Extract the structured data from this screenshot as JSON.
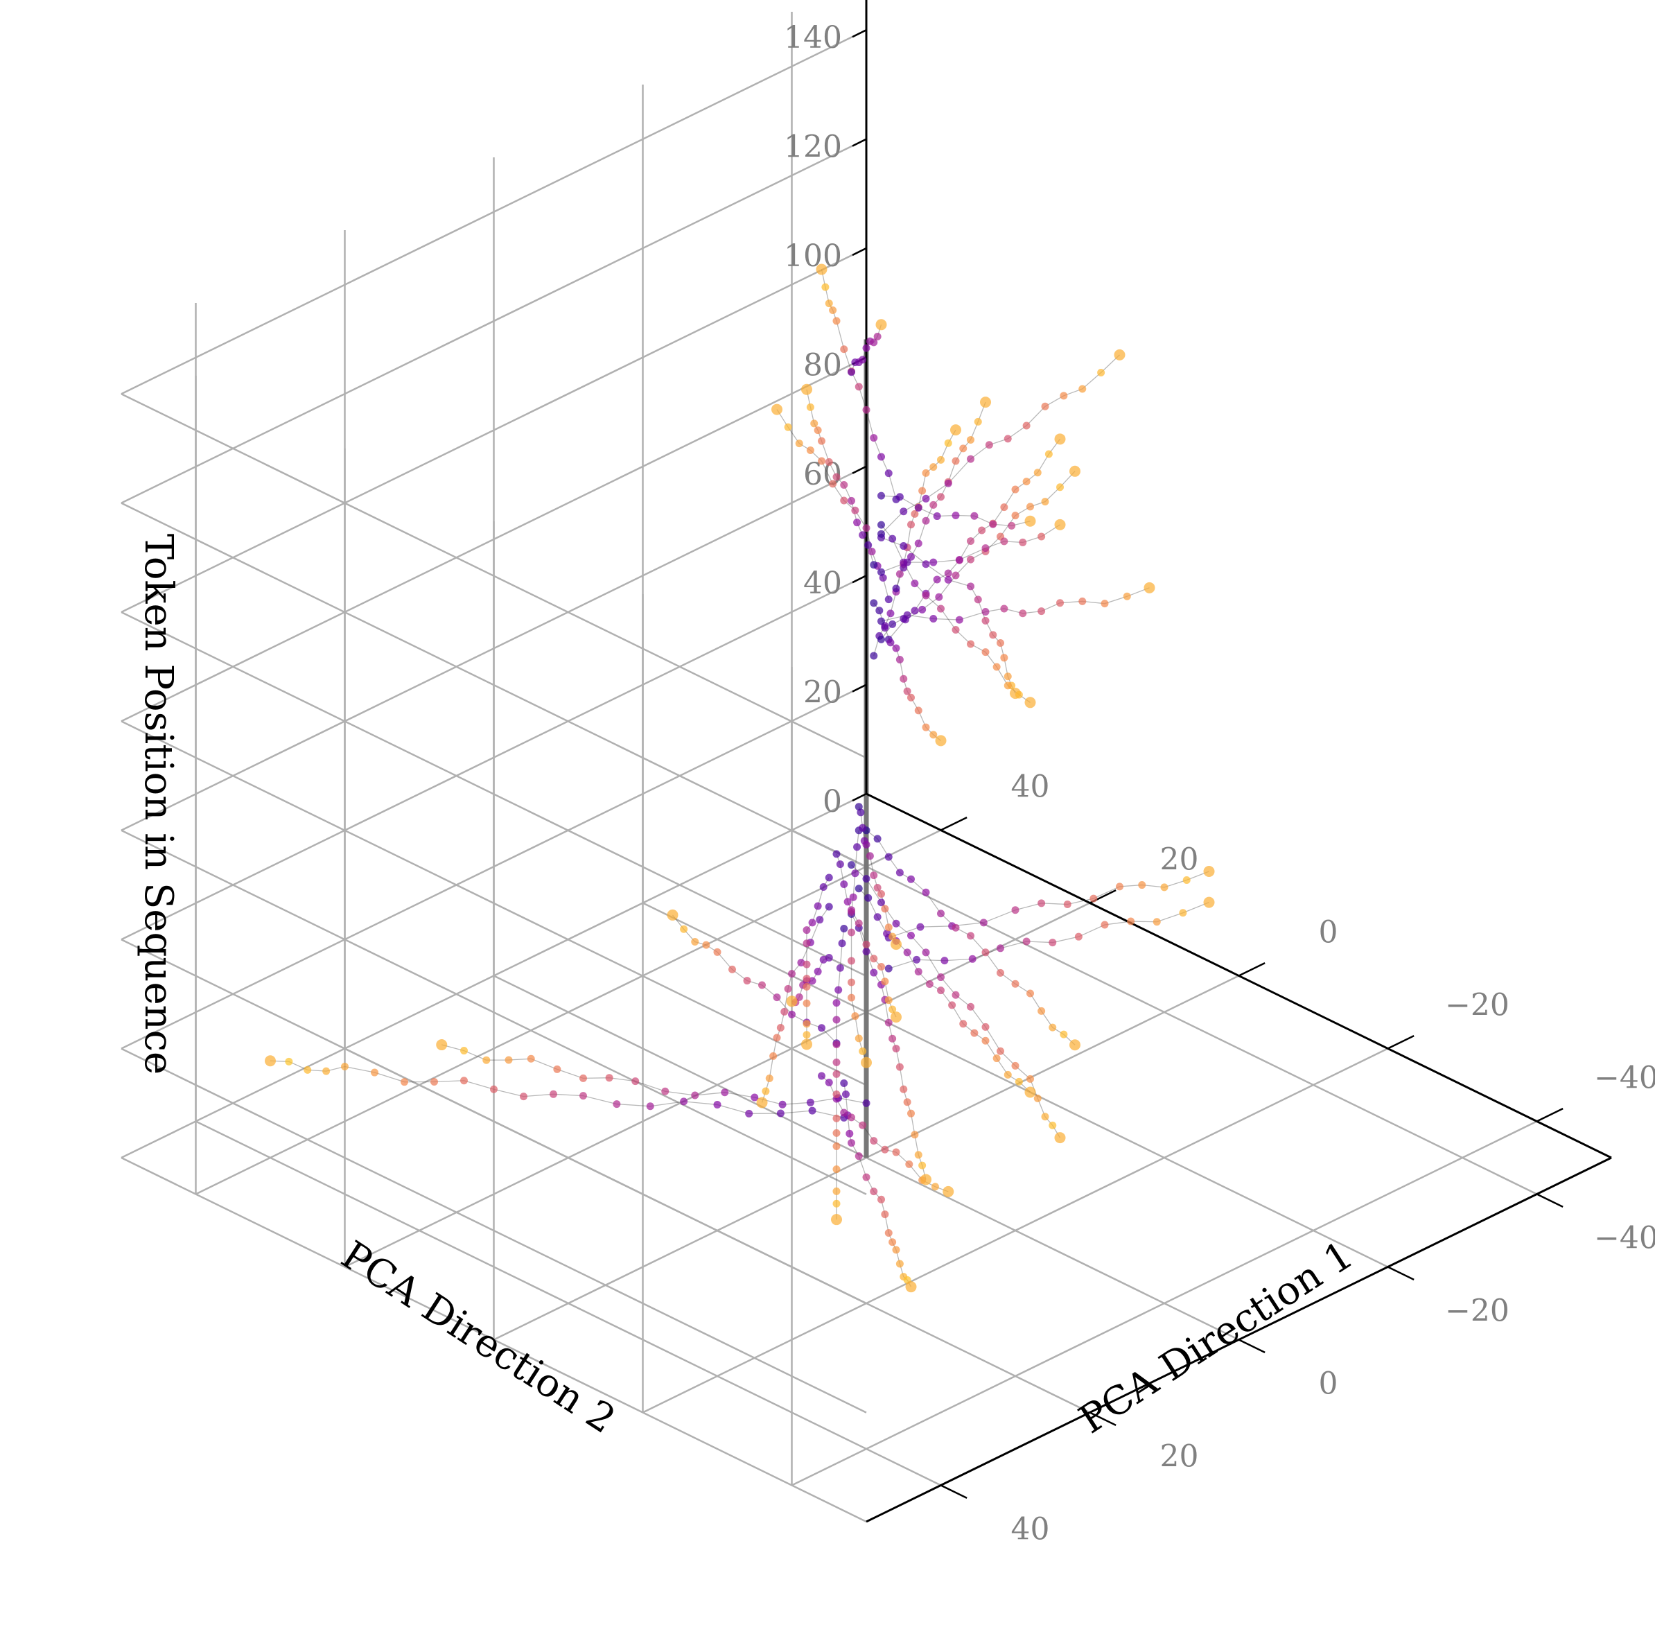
{
  "chart_data": {
    "type": "scatter",
    "projection": "3d",
    "title": "",
    "xlabel": "PCA Direction 1",
    "ylabel": "PCA Direction 2",
    "zlabel": "Token Position in Sequence",
    "xlim": [
      -50,
      50
    ],
    "ylim": [
      -50,
      50
    ],
    "zlim": [
      0,
      150
    ],
    "xticks": [
      "−40",
      "−20",
      "0",
      "20",
      "40"
    ],
    "yticks": [
      "−40",
      "−20",
      "0",
      "20",
      "40"
    ],
    "zticks": [
      "0",
      "20",
      "40",
      "60",
      "80",
      "100",
      "120",
      "140"
    ],
    "grid": true,
    "colormap": "plasma",
    "reference_line": {
      "x": 0,
      "y": 0,
      "z": [
        0,
        150
      ],
      "color": "#777777"
    },
    "description_series": "Trajectories of token representations; each trajectory is a sequence of points over token position, colored by plasma colormap (dark purple near center, orange/yellow at outer endpoints).",
    "trajectories": [
      {
        "z": 12,
        "points": [
          [
            -2,
            5
          ],
          [
            8,
            12
          ],
          [
            18,
            20
          ],
          [
            28,
            26
          ],
          [
            38,
            32
          ],
          [
            44,
            36
          ]
        ]
      },
      {
        "z": 14,
        "points": [
          [
            -3,
            3
          ],
          [
            5,
            10
          ],
          [
            15,
            16
          ],
          [
            25,
            20
          ],
          [
            33,
            24
          ]
        ]
      },
      {
        "z": 17,
        "points": [
          [
            -1,
            4
          ],
          [
            -10,
            12
          ],
          [
            -20,
            18
          ],
          [
            -28,
            24
          ],
          [
            -34,
            28
          ]
        ]
      },
      {
        "z": 19,
        "points": [
          [
            0,
            6
          ],
          [
            -8,
            10
          ],
          [
            -16,
            12
          ],
          [
            -25,
            14
          ]
        ]
      },
      {
        "z": 21,
        "points": [
          [
            2,
            2
          ],
          [
            12,
            0
          ],
          [
            22,
            -2
          ],
          [
            30,
            -4
          ]
        ]
      },
      {
        "z": 34,
        "points": [
          [
            -1,
            -2
          ],
          [
            -6,
            -12
          ],
          [
            -10,
            -22
          ],
          [
            -14,
            -32
          ]
        ]
      },
      {
        "z": 37,
        "points": [
          [
            1,
            -4
          ],
          [
            -4,
            -16
          ],
          [
            -8,
            -26
          ],
          [
            -12,
            -34
          ]
        ]
      },
      {
        "z": 40,
        "points": [
          [
            0,
            5
          ],
          [
            -2,
            10
          ],
          [
            -4,
            14
          ]
        ]
      },
      {
        "z": 44,
        "points": [
          [
            0,
            3
          ],
          [
            -10,
            14
          ],
          [
            -20,
            24
          ],
          [
            -30,
            34
          ],
          [
            -40,
            44
          ]
        ]
      },
      {
        "z": 46,
        "points": [
          [
            0,
            2
          ],
          [
            -12,
            10
          ],
          [
            -22,
            18
          ],
          [
            -32,
            26
          ],
          [
            -42,
            34
          ]
        ]
      },
      {
        "z": 48,
        "points": [
          [
            1,
            4
          ],
          [
            -6,
            16
          ],
          [
            -14,
            26
          ],
          [
            -22,
            36
          ]
        ]
      },
      {
        "z": 50,
        "points": [
          [
            0,
            1
          ],
          [
            -10,
            6
          ],
          [
            -20,
            10
          ],
          [
            -30,
            14
          ],
          [
            -40,
            18
          ]
        ]
      },
      {
        "z": 52,
        "points": [
          [
            2,
            3
          ],
          [
            -4,
            12
          ],
          [
            -12,
            20
          ],
          [
            -20,
            28
          ]
        ]
      },
      {
        "z": 55,
        "points": [
          [
            0,
            2
          ],
          [
            -14,
            8
          ],
          [
            -28,
            14
          ],
          [
            -42,
            20
          ],
          [
            -52,
            26
          ]
        ]
      },
      {
        "z": 57,
        "points": [
          [
            1,
            3
          ],
          [
            -8,
            10
          ],
          [
            -18,
            16
          ],
          [
            -26,
            22
          ]
        ]
      },
      {
        "z": 60,
        "points": [
          [
            0,
            0
          ],
          [
            -10,
            4
          ],
          [
            -22,
            8
          ],
          [
            -34,
            12
          ],
          [
            -44,
            16
          ]
        ]
      },
      {
        "z": 62,
        "points": [
          [
            -1,
            2
          ],
          [
            -12,
            14
          ],
          [
            -24,
            26
          ],
          [
            -34,
            34
          ]
        ]
      },
      {
        "z": 65,
        "points": [
          [
            0,
            1
          ],
          [
            -6,
            6
          ],
          [
            -14,
            12
          ],
          [
            -22,
            18
          ]
        ]
      },
      {
        "z": 90,
        "points": [
          [
            1,
            -2
          ],
          [
            8,
            -12
          ],
          [
            16,
            -22
          ],
          [
            22,
            -30
          ],
          [
            26,
            -38
          ]
        ]
      },
      {
        "z": 93,
        "points": [
          [
            0,
            -3
          ],
          [
            4,
            -16
          ],
          [
            8,
            -28
          ],
          [
            10,
            -38
          ]
        ]
      },
      {
        "z": 95,
        "points": [
          [
            -1,
            -1
          ],
          [
            2,
            -10
          ],
          [
            6,
            -20
          ],
          [
            10,
            -30
          ],
          [
            14,
            -40
          ]
        ]
      },
      {
        "z": 97,
        "points": [
          [
            0,
            -2
          ],
          [
            -6,
            -10
          ],
          [
            -10,
            -16
          ],
          [
            -14,
            -24
          ]
        ]
      },
      {
        "z": 99,
        "points": [
          [
            1,
            -4
          ],
          [
            12,
            -12
          ],
          [
            24,
            -18
          ],
          [
            34,
            -22
          ]
        ]
      },
      {
        "z": 101,
        "points": [
          [
            0,
            -1
          ],
          [
            -8,
            4
          ],
          [
            -16,
            10
          ],
          [
            -24,
            14
          ]
        ]
      },
      {
        "z": 103,
        "points": [
          [
            -1,
            -3
          ],
          [
            6,
            -14
          ],
          [
            12,
            -24
          ],
          [
            18,
            -34
          ]
        ]
      },
      {
        "z": 106,
        "points": [
          [
            0,
            -2
          ],
          [
            -4,
            -12
          ],
          [
            -6,
            -20
          ]
        ]
      },
      {
        "z": 108,
        "points": [
          [
            0,
            -1
          ],
          [
            10,
            -8
          ],
          [
            20,
            -14
          ],
          [
            28,
            -20
          ]
        ]
      },
      {
        "z": 111,
        "points": [
          [
            1,
            -3
          ],
          [
            -12,
            -2
          ],
          [
            -22,
            4
          ],
          [
            -30,
            10
          ]
        ]
      },
      {
        "z": 113,
        "points": [
          [
            0,
            -2
          ],
          [
            4,
            -18
          ],
          [
            6,
            -30
          ],
          [
            8,
            -42
          ]
        ]
      },
      {
        "z": 116,
        "points": [
          [
            -1,
            -1
          ],
          [
            -14,
            6
          ],
          [
            -26,
            10
          ],
          [
            -36,
            14
          ]
        ]
      },
      {
        "z": 118,
        "points": [
          [
            0,
            -4
          ],
          [
            14,
            -14
          ],
          [
            28,
            -24
          ],
          [
            36,
            -30
          ]
        ]
      },
      {
        "z": 120,
        "points": [
          [
            0,
            -2
          ],
          [
            -8,
            -4
          ],
          [
            -14,
            -8
          ]
        ]
      },
      {
        "z": 140,
        "points": [
          [
            4,
            -2
          ],
          [
            6,
            -6
          ],
          [
            8,
            -10
          ]
        ]
      }
    ]
  }
}
